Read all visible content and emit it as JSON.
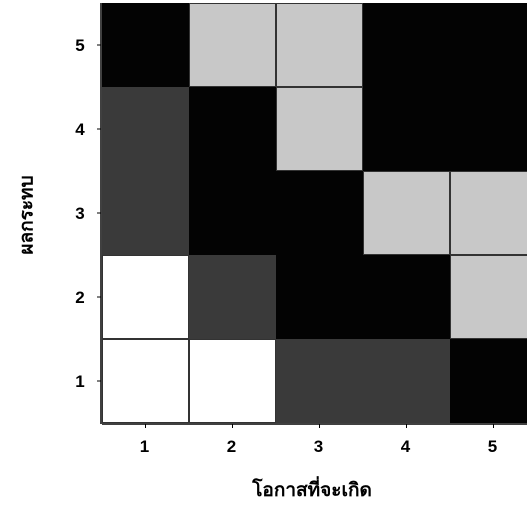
{
  "chart_data": {
    "type": "heatmap",
    "xlabel": "โอกาสที่จะเกิด",
    "ylabel": "ผลกระทบ",
    "x_categories": [
      "1",
      "2",
      "3",
      "4",
      "5"
    ],
    "y_categories": [
      "1",
      "2",
      "3",
      "4",
      "5"
    ],
    "level_colors": {
      "white": "#ffffff",
      "light": "#c8c8c8",
      "dark": "#3a3a3a",
      "black": "#030303"
    },
    "cells": [
      {
        "x": "1",
        "y": "5",
        "level": "black"
      },
      {
        "x": "2",
        "y": "5",
        "level": "light"
      },
      {
        "x": "3",
        "y": "5",
        "level": "light"
      },
      {
        "x": "4",
        "y": "5",
        "level": "black"
      },
      {
        "x": "5",
        "y": "5",
        "level": "black"
      },
      {
        "x": "1",
        "y": "4",
        "level": "dark"
      },
      {
        "x": "2",
        "y": "4",
        "level": "black"
      },
      {
        "x": "3",
        "y": "4",
        "level": "light"
      },
      {
        "x": "4",
        "y": "4",
        "level": "black"
      },
      {
        "x": "5",
        "y": "4",
        "level": "black"
      },
      {
        "x": "1",
        "y": "3",
        "level": "dark"
      },
      {
        "x": "2",
        "y": "3",
        "level": "black"
      },
      {
        "x": "3",
        "y": "3",
        "level": "black"
      },
      {
        "x": "4",
        "y": "3",
        "level": "light"
      },
      {
        "x": "5",
        "y": "3",
        "level": "light"
      },
      {
        "x": "1",
        "y": "2",
        "level": "white"
      },
      {
        "x": "2",
        "y": "2",
        "level": "dark"
      },
      {
        "x": "3",
        "y": "2",
        "level": "black"
      },
      {
        "x": "4",
        "y": "2",
        "level": "black"
      },
      {
        "x": "5",
        "y": "2",
        "level": "light"
      },
      {
        "x": "1",
        "y": "1",
        "level": "white"
      },
      {
        "x": "2",
        "y": "1",
        "level": "white"
      },
      {
        "x": "3",
        "y": "1",
        "level": "dark"
      },
      {
        "x": "4",
        "y": "1",
        "level": "dark"
      },
      {
        "x": "5",
        "y": "1",
        "level": "black"
      }
    ],
    "grid": true
  }
}
